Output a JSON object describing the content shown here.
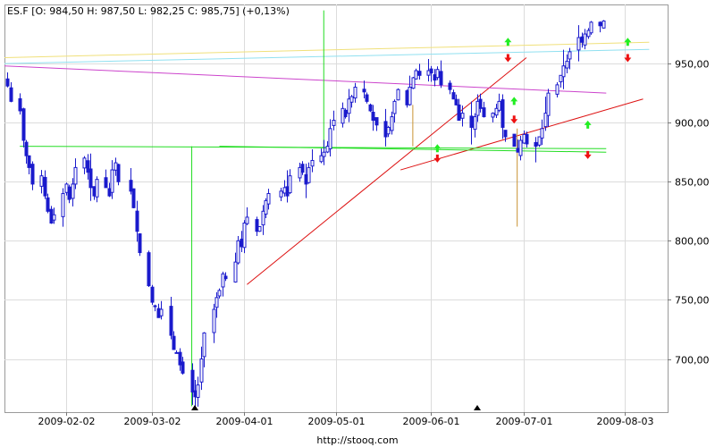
{
  "header_text": "ES.F [O: 984,50  H: 987,50  L: 982,25  C: 985,75] (+0,13%)",
  "footer_url": "http://stooq.com",
  "colors": {
    "candle": "#1a1acc",
    "trend_red": "#dd1111",
    "trend_green": "#22dd22",
    "trend_magenta": "#cc44cc",
    "trend_yellow": "#f0e07a",
    "trend_cyan": "#90e0f0",
    "trend_orange": "#c89432",
    "arrow_up": "#22ee22",
    "arrow_down": "#ee1111"
  },
  "chart_data": {
    "type": "candlestick",
    "title": "",
    "instrument": "ES.F",
    "x_tick_labels": [
      "2009-02-02",
      "2009-03-02",
      "2009-04-01",
      "2009-05-01",
      "2009-06-01",
      "2009-07-01",
      "2009-08-03"
    ],
    "x_tick_day_index": [
      20,
      48,
      78,
      108,
      139,
      169,
      202
    ],
    "y_tick_labels": [
      "700,00",
      "750,00",
      "800,00",
      "850,00",
      "900,00",
      "950,00"
    ],
    "y_tick_values": [
      700,
      750,
      800,
      850,
      900,
      950
    ],
    "ylim": [
      655,
      1000
    ],
    "xlim_day_index": [
      0,
      216
    ],
    "grid": true,
    "closes": [
      [
        1,
        931
      ],
      [
        2,
        918
      ],
      [
        5,
        910
      ],
      [
        6,
        885
      ],
      [
        7,
        872
      ],
      [
        8,
        862
      ],
      [
        9,
        848
      ],
      [
        12,
        855
      ],
      [
        13,
        838
      ],
      [
        14,
        825
      ],
      [
        15,
        815
      ],
      [
        16,
        822
      ],
      [
        19,
        840
      ],
      [
        20,
        848
      ],
      [
        21,
        835
      ],
      [
        22,
        848
      ],
      [
        23,
        862
      ],
      [
        26,
        870
      ],
      [
        27,
        858
      ],
      [
        28,
        845
      ],
      [
        29,
        838
      ],
      [
        30,
        852
      ],
      [
        33,
        845
      ],
      [
        34,
        838
      ],
      [
        35,
        860
      ],
      [
        36,
        866
      ],
      [
        37,
        850
      ],
      [
        41,
        842
      ],
      [
        42,
        828
      ],
      [
        43,
        808
      ],
      [
        44,
        790
      ],
      [
        47,
        762
      ],
      [
        48,
        748
      ],
      [
        49,
        745
      ],
      [
        50,
        735
      ],
      [
        51,
        742
      ],
      [
        54,
        720
      ],
      [
        55,
        708
      ],
      [
        56,
        705
      ],
      [
        57,
        695
      ],
      [
        58,
        688
      ],
      [
        61,
        672
      ],
      [
        62,
        668
      ],
      [
        63,
        678
      ],
      [
        64,
        700
      ],
      [
        65,
        722
      ],
      [
        68,
        742
      ],
      [
        69,
        752
      ],
      [
        70,
        758
      ],
      [
        71,
        772
      ],
      [
        72,
        768
      ],
      [
        75,
        782
      ],
      [
        76,
        800
      ],
      [
        77,
        795
      ],
      [
        78,
        815
      ],
      [
        79,
        820
      ],
      [
        82,
        808
      ],
      [
        83,
        812
      ],
      [
        84,
        825
      ],
      [
        85,
        834
      ],
      [
        86,
        840
      ],
      [
        90,
        842
      ],
      [
        91,
        845
      ],
      [
        92,
        838
      ],
      [
        93,
        855
      ],
      [
        96,
        862
      ],
      [
        97,
        858
      ],
      [
        98,
        848
      ],
      [
        99,
        862
      ],
      [
        100,
        868
      ],
      [
        103,
        872
      ],
      [
        104,
        875
      ],
      [
        105,
        880
      ],
      [
        106,
        895
      ],
      [
        107,
        902
      ],
      [
        110,
        912
      ],
      [
        111,
        905
      ],
      [
        112,
        920
      ],
      [
        113,
        922
      ],
      [
        114,
        930
      ],
      [
        117,
        926
      ],
      [
        118,
        918
      ],
      [
        119,
        910
      ],
      [
        120,
        902
      ],
      [
        121,
        898
      ],
      [
        124,
        888
      ],
      [
        125,
        896
      ],
      [
        126,
        905
      ],
      [
        127,
        918
      ],
      [
        128,
        928
      ],
      [
        131,
        915
      ],
      [
        132,
        930
      ],
      [
        133,
        938
      ],
      [
        134,
        944
      ],
      [
        135,
        940
      ],
      [
        138,
        944
      ],
      [
        139,
        942
      ],
      [
        140,
        936
      ],
      [
        141,
        945
      ],
      [
        142,
        932
      ],
      [
        145,
        928
      ],
      [
        146,
        920
      ],
      [
        147,
        915
      ],
      [
        148,
        902
      ],
      [
        149,
        908
      ],
      [
        152,
        896
      ],
      [
        153,
        905
      ],
      [
        154,
        918
      ],
      [
        155,
        912
      ],
      [
        156,
        905
      ],
      [
        159,
        908
      ],
      [
        160,
        912
      ],
      [
        161,
        918
      ],
      [
        162,
        896
      ],
      [
        163,
        888
      ],
      [
        166,
        880
      ],
      [
        167,
        875
      ],
      [
        168,
        885
      ],
      [
        169,
        890
      ],
      [
        170,
        882
      ],
      [
        173,
        880
      ],
      [
        174,
        888
      ],
      [
        175,
        895
      ],
      [
        176,
        908
      ],
      [
        177,
        925
      ],
      [
        180,
        932
      ],
      [
        181,
        940
      ],
      [
        182,
        948
      ],
      [
        183,
        952
      ],
      [
        184,
        960
      ],
      [
        187,
        972
      ],
      [
        188,
        968
      ],
      [
        189,
        975
      ],
      [
        190,
        978
      ],
      [
        191,
        985
      ],
      [
        194,
        982
      ],
      [
        195,
        986
      ]
    ],
    "trendlines": [
      {
        "color": "red",
        "from": [
          79,
          763
        ],
        "to": [
          170,
          955
        ]
      },
      {
        "color": "red",
        "from": [
          129,
          860
        ],
        "to": [
          208,
          920
        ]
      },
      {
        "color": "green",
        "from": [
          5,
          880
        ],
        "to": [
          196,
          878
        ]
      },
      {
        "color": "green",
        "from": [
          70,
          880
        ],
        "to": [
          196,
          875
        ]
      },
      {
        "color": "magenta",
        "from": [
          0,
          948
        ],
        "to": [
          196,
          925
        ]
      },
      {
        "color": "yellow",
        "from": [
          0,
          955
        ],
        "to": [
          210,
          968
        ]
      },
      {
        "color": "cyan",
        "from": [
          0,
          950
        ],
        "to": [
          210,
          962
        ]
      }
    ],
    "markers": {
      "arrow_up": [
        [
          141,
          878
        ],
        [
          164,
          968
        ],
        [
          166,
          918
        ],
        [
          190,
          898
        ],
        [
          203,
          968
        ]
      ],
      "arrow_down": [
        [
          141,
          870
        ],
        [
          164,
          955
        ],
        [
          166,
          903
        ],
        [
          190,
          873
        ],
        [
          203,
          955
        ]
      ],
      "triangles_bottom_day_index": [
        62,
        154
      ]
    }
  }
}
